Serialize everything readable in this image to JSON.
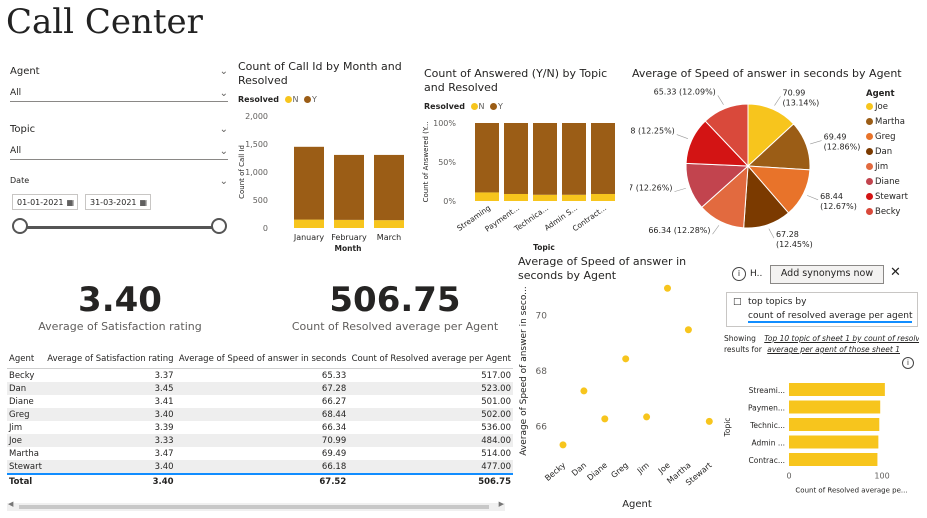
{
  "title": "Call Center",
  "colors": {
    "yellow": "#f7c51d",
    "brown": "#9b5d16",
    "accent": "#118dff"
  },
  "slicers": {
    "agent": {
      "label": "Agent",
      "value": "All"
    },
    "topic": {
      "label": "Topic",
      "value": "All"
    },
    "date": {
      "label": "Date",
      "start": "01-01-2021",
      "end": "31-03-2021"
    }
  },
  "kpis": [
    {
      "value": "3.40",
      "label": "Average of Satisfaction rating"
    },
    {
      "value": "506.75",
      "label": "Count of Resolved average per Agent"
    }
  ],
  "table": {
    "headers": [
      "Agent",
      "Average of Satisfaction rating",
      "Average of Speed of answer in seconds",
      "Count of Resolved average per Agent"
    ],
    "rows": [
      [
        "Becky",
        "3.37",
        "65.33",
        "517.00"
      ],
      [
        "Dan",
        "3.45",
        "67.28",
        "523.00"
      ],
      [
        "Diane",
        "3.41",
        "66.27",
        "501.00"
      ],
      [
        "Greg",
        "3.40",
        "68.44",
        "502.00"
      ],
      [
        "Jim",
        "3.39",
        "66.34",
        "536.00"
      ],
      [
        "Joe",
        "3.33",
        "70.99",
        "484.00"
      ],
      [
        "Martha",
        "3.47",
        "69.49",
        "514.00"
      ],
      [
        "Stewart",
        "3.40",
        "66.18",
        "477.00"
      ]
    ],
    "total": [
      "Total",
      "3.40",
      "67.52",
      "506.75"
    ]
  },
  "qa": {
    "tooltip_h": "H..",
    "synonyms_button": "Add synonyms now",
    "question_prefix": "top topics by",
    "question_rest": "count of resolved average per agent",
    "showing": "Showing",
    "results_for": "results for",
    "link1": "Top 10 topic of sheet 1 by count of resolv",
    "link2": "average per agent of those sheet 1"
  },
  "chart_data": [
    {
      "id": "month",
      "type": "bar",
      "stacked": true,
      "title": "Count of Call Id by Month and Resolved",
      "legend_title": "Resolved",
      "categories": [
        "January",
        "February",
        "March"
      ],
      "series": [
        {
          "name": "N",
          "color": "#f7c51d",
          "values": [
            150,
            145,
            140
          ]
        },
        {
          "name": "Y",
          "color": "#9b5d16",
          "values": [
            1300,
            1160,
            1165
          ]
        }
      ],
      "xlabel": "Month",
      "ylabel": "Count of Call Id",
      "ylim": [
        0,
        2000
      ],
      "yticks": [
        "0",
        "500",
        "1,000",
        "1,500",
        "2,000"
      ]
    },
    {
      "id": "topic",
      "type": "bar",
      "stacked": true,
      "percent": true,
      "title": "Count of Answered (Y/N) by Topic and Resolved",
      "legend_title": "Resolved",
      "categories": [
        "Streaming",
        "Payment...",
        "Technica...",
        "Admin S...",
        "Contract..."
      ],
      "series": [
        {
          "name": "N",
          "color": "#f7c51d",
          "values": [
            11,
            9,
            8,
            8,
            9
          ]
        },
        {
          "name": "Y",
          "color": "#9b5d16",
          "values": [
            89,
            91,
            92,
            92,
            91
          ]
        }
      ],
      "xlabel": "Topic",
      "ylabel": "Count of Answered (Y...",
      "ylim": [
        0,
        100
      ],
      "yticks": [
        "0%",
        "50%",
        "100%"
      ]
    },
    {
      "id": "pie",
      "type": "pie",
      "title": "Average of Speed of answer in seconds by Agent",
      "legend_title": "Agent",
      "slices": [
        {
          "name": "Joe",
          "value": 70.99,
          "pct": "13.14%",
          "color": "#f7c51d"
        },
        {
          "name": "Martha",
          "value": 69.49,
          "pct": "12.86%",
          "color": "#9b5d16"
        },
        {
          "name": "Greg",
          "value": 68.44,
          "pct": "12.67%",
          "color": "#e8732a"
        },
        {
          "name": "Dan",
          "value": 67.28,
          "pct": "12.45%",
          "color": "#7b3a00"
        },
        {
          "name": "Jim",
          "value": 66.34,
          "pct": "12.28%",
          "color": "#e26a3f"
        },
        {
          "name": "Diane",
          "value": 66.27,
          "pct": "12.26%",
          "color": "#c2444e"
        },
        {
          "name": "Stewart",
          "value": 66.18,
          "pct": "12.25%",
          "color": "#d31414"
        },
        {
          "name": "Becky",
          "value": 65.33,
          "pct": "12.09%",
          "color": "#d9493b"
        }
      ]
    },
    {
      "id": "scatter",
      "type": "scatter",
      "title": "Average of Speed of answer in seconds by Agent",
      "categories": [
        "Becky",
        "Dan",
        "Diane",
        "Greg",
        "Jim",
        "Joe",
        "Martha",
        "Stewart"
      ],
      "values": [
        65.33,
        67.28,
        66.27,
        68.44,
        66.34,
        70.99,
        69.49,
        66.18
      ],
      "xlabel": "Agent",
      "ylabel": "Average of Speed of answer in seco...",
      "ylim": [
        65,
        71
      ],
      "yticks": [
        "66",
        "68",
        "70"
      ]
    },
    {
      "id": "qabar",
      "type": "bar",
      "orientation": "horizontal",
      "categories": [
        "Streami...",
        "Paymen...",
        "Technic...",
        "Admin ...",
        "Contrac..."
      ],
      "values": [
        103,
        98,
        97,
        96,
        95
      ],
      "xlabel": "Count of Resolved average pe...",
      "ylabel": "Topic",
      "xlim": [
        0,
        130
      ],
      "xticks": [
        "0",
        "100"
      ]
    }
  ]
}
